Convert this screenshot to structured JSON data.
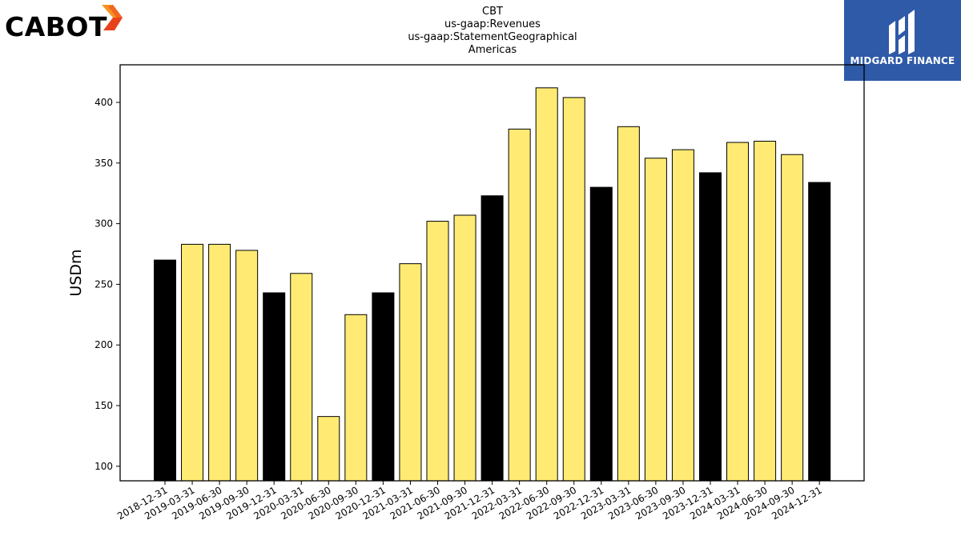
{
  "company_logo": {
    "wordmark": "CABOT",
    "colors": [
      "#e8421c",
      "#f7941d"
    ]
  },
  "brand_logo": {
    "name": "MIDGARD FINANCE",
    "background": "#2e5aa8"
  },
  "chart_data": {
    "type": "bar",
    "title_lines": [
      "CBT",
      "us-gaap:Revenues",
      "us-gaap:StatementGeographical",
      "Americas"
    ],
    "xlabel": "",
    "ylabel": "USDm",
    "ylim": [
      88,
      431
    ],
    "yticks": [
      100,
      150,
      200,
      250,
      300,
      350,
      400
    ],
    "grid": false,
    "categories": [
      "2018-12-31",
      "2019-03-31",
      "2019-06-30",
      "2019-09-30",
      "2019-12-31",
      "2020-03-31",
      "2020-06-30",
      "2020-09-30",
      "2020-12-31",
      "2021-03-31",
      "2021-06-30",
      "2021-09-30",
      "2021-12-31",
      "2022-03-31",
      "2022-06-30",
      "2022-09-30",
      "2022-12-31",
      "2023-03-31",
      "2023-06-30",
      "2023-09-30",
      "2023-12-31",
      "2024-03-31",
      "2024-06-30",
      "2024-09-30",
      "2024-12-31"
    ],
    "values": [
      270,
      283,
      283,
      278,
      243,
      259,
      141,
      225,
      243,
      267,
      302,
      307,
      323,
      378,
      412,
      404,
      330,
      380,
      354,
      361,
      342,
      367,
      368,
      357,
      334
    ],
    "colors": {
      "fiscal_year_end": "#000000",
      "quarter": "#ffeb73",
      "edge": "#000000"
    }
  }
}
